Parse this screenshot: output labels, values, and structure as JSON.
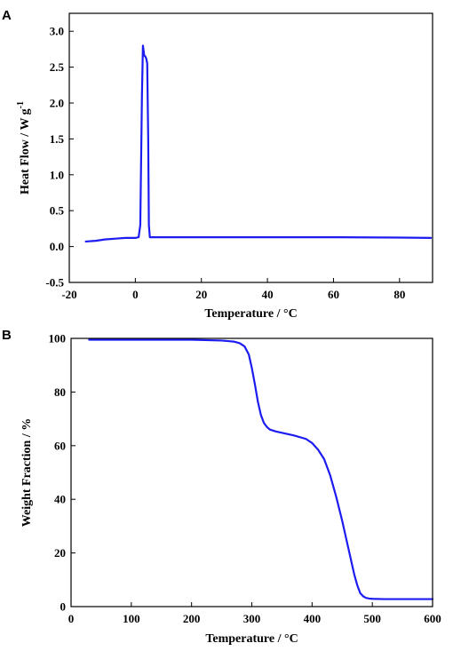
{
  "chart_data": [
    {
      "type": "line",
      "panel_label": "A",
      "xlabel": "Temperature / °C",
      "ylabel": "Heat Flow / W g",
      "ylabel_sup": "-1",
      "xlim": [
        -20,
        90
      ],
      "ylim": [
        -0.5,
        3.25
      ],
      "xticks": [
        -20,
        0,
        20,
        40,
        60,
        80
      ],
      "xtick_labels": [
        "-20",
        "0",
        "20",
        "40",
        "60",
        "80"
      ],
      "yticks": [
        -0.5,
        0.0,
        0.5,
        1.0,
        1.5,
        2.0,
        2.5,
        3.0
      ],
      "ytick_labels": [
        "-0.5",
        "0.0",
        "0.5",
        "1.0",
        "1.5",
        "2.0",
        "2.5",
        "3.0"
      ],
      "grid": false,
      "series": [
        {
          "color": "#1c1cf0",
          "x": [
            -15,
            -12,
            -9,
            -6,
            -3,
            0,
            1,
            1.5,
            2,
            2.3,
            2.7,
            3.0,
            3.3,
            3.6,
            3.9,
            4.1,
            4.4,
            5,
            10,
            20,
            40,
            60,
            80,
            89.5
          ],
          "y": [
            0.07,
            0.08,
            0.1,
            0.11,
            0.12,
            0.12,
            0.13,
            0.3,
            2.1,
            2.8,
            2.66,
            2.65,
            2.62,
            2.55,
            1.5,
            0.3,
            0.13,
            0.13,
            0.13,
            0.13,
            0.13,
            0.13,
            0.125,
            0.12
          ]
        }
      ]
    },
    {
      "type": "line",
      "panel_label": "B",
      "xlabel": "Temperature / °C",
      "ylabel": "Weight Fraction / %",
      "xlim": [
        0,
        600
      ],
      "ylim": [
        0,
        100
      ],
      "xticks": [
        0,
        100,
        200,
        300,
        400,
        500,
        600
      ],
      "xtick_labels": [
        "0",
        "100",
        "200",
        "300",
        "400",
        "500",
        "600"
      ],
      "yticks": [
        0,
        20,
        40,
        60,
        80,
        100
      ],
      "ytick_labels": [
        "0",
        "20",
        "40",
        "60",
        "80",
        "100"
      ],
      "grid": false,
      "series": [
        {
          "color": "#1c1cf0",
          "x": [
            30,
            100,
            200,
            250,
            270,
            280,
            288,
            295,
            300,
            305,
            310,
            315,
            320,
            325,
            330,
            340,
            350,
            370,
            390,
            400,
            410,
            420,
            430,
            440,
            450,
            460,
            465,
            470,
            475,
            480,
            485,
            490,
            495,
            500,
            520,
            550,
            580,
            600
          ],
          "y": [
            99.5,
            99.5,
            99.5,
            99.2,
            98.8,
            98.2,
            97.0,
            94.0,
            89.0,
            83.0,
            76.5,
            71.5,
            68.5,
            67.0,
            66.0,
            65.3,
            64.8,
            63.8,
            62.5,
            61.0,
            58.5,
            55.0,
            49.0,
            41.0,
            32.0,
            22.0,
            17.0,
            12.0,
            8.0,
            5.0,
            3.8,
            3.2,
            3.0,
            2.9,
            2.8,
            2.8,
            2.8,
            2.8
          ]
        }
      ]
    }
  ]
}
